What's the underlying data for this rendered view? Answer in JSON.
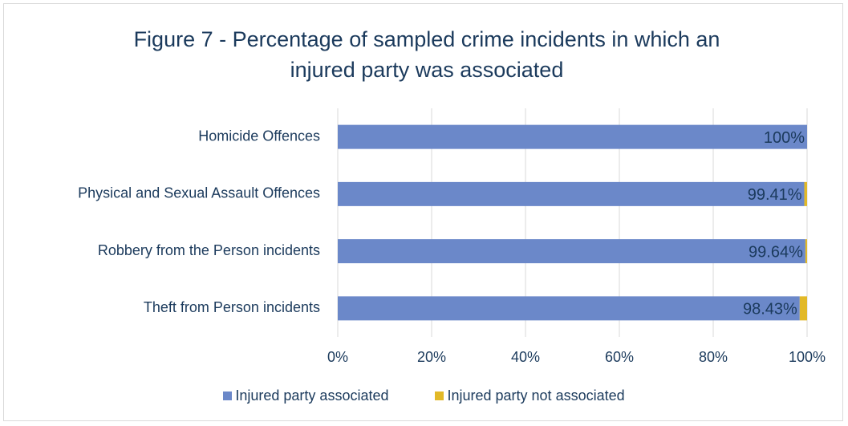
{
  "chart_data": {
    "type": "stacked-barh",
    "title": "Figure 7 - Percentage of sampled crime incidents in which an injured party was associated",
    "categories": [
      "Homicide Offences",
      "Physical and Sexual Assault Offences",
      "Robbery from the Person incidents",
      "Theft from Person incidents"
    ],
    "series": [
      {
        "name": "Injured party associated",
        "color": "#6b88c9",
        "values": [
          100,
          99.41,
          99.64,
          98.43
        ],
        "value_labels": [
          "100%",
          "99.41%",
          "99.64%",
          "98.43%"
        ]
      },
      {
        "name": "Injured party not associated",
        "color": "#e2b928",
        "values": [
          0,
          0.59,
          0.36,
          1.57
        ]
      }
    ],
    "xlim": [
      0,
      100
    ],
    "xticks": [
      {
        "value": 0,
        "label": "0%"
      },
      {
        "value": 20,
        "label": "20%"
      },
      {
        "value": 40,
        "label": "40%"
      },
      {
        "value": 60,
        "label": "60%"
      },
      {
        "value": 80,
        "label": "80%"
      },
      {
        "value": 100,
        "label": "100%"
      }
    ],
    "grid": true,
    "legend": "bottom"
  }
}
